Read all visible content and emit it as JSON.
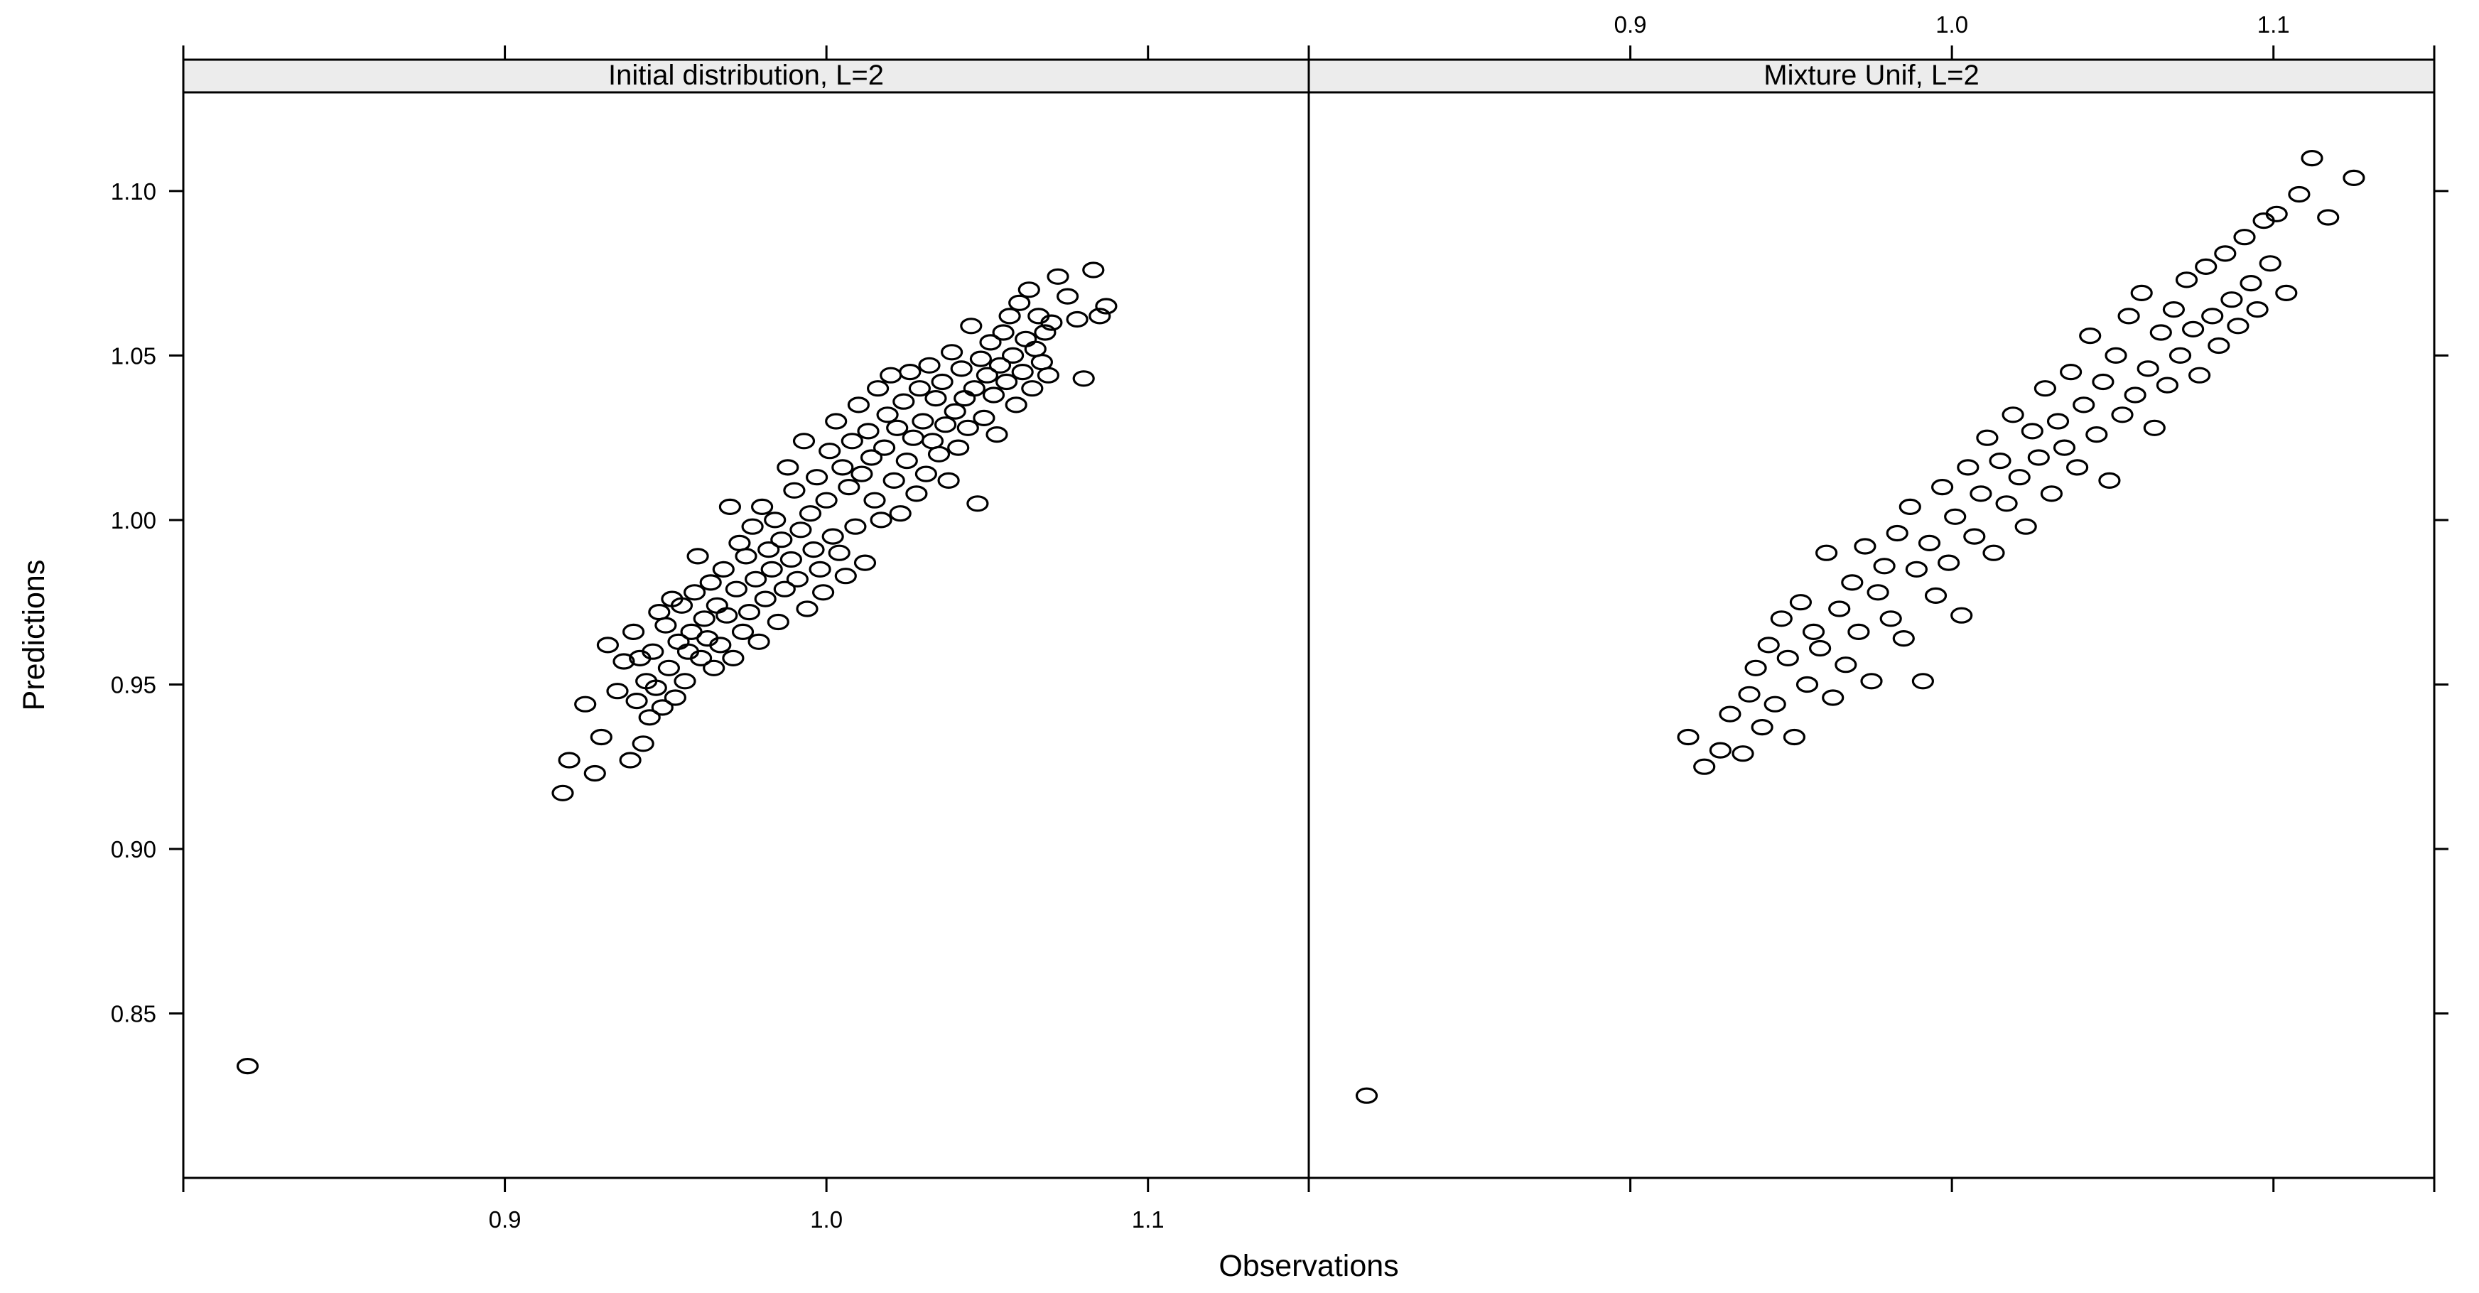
{
  "chart_data": {
    "type": "scatter",
    "xlabel": "Observations",
    "ylabel": "Predictions",
    "xlim": [
      0.8,
      1.15
    ],
    "ylim": [
      0.8,
      1.13
    ],
    "x_ticks": [
      0.9,
      1.0,
      1.1
    ],
    "x_tick_labels": [
      "0.9",
      "1.0",
      "1.1"
    ],
    "y_ticks": [
      0.85,
      0.9,
      0.95,
      1.0,
      1.05,
      1.1
    ],
    "y_tick_labels": [
      "0.85",
      "0.90",
      "0.95",
      "1.00",
      "1.05",
      "1.10"
    ],
    "grid": false,
    "marker": "open-circle",
    "panels": [
      {
        "title": "Initial distribution, L=2",
        "points": {
          "x": [
            0.82,
            0.918,
            0.92,
            0.925,
            0.928,
            0.93,
            0.932,
            0.935,
            0.937,
            0.939,
            0.94,
            0.941,
            0.942,
            0.943,
            0.944,
            0.945,
            0.946,
            0.947,
            0.948,
            0.949,
            0.95,
            0.951,
            0.952,
            0.953,
            0.954,
            0.955,
            0.956,
            0.957,
            0.958,
            0.959,
            0.96,
            0.961,
            0.962,
            0.963,
            0.964,
            0.965,
            0.966,
            0.967,
            0.968,
            0.969,
            0.97,
            0.971,
            0.972,
            0.973,
            0.974,
            0.975,
            0.976,
            0.977,
            0.978,
            0.979,
            0.98,
            0.981,
            0.982,
            0.983,
            0.984,
            0.985,
            0.986,
            0.987,
            0.988,
            0.989,
            0.99,
            0.991,
            0.992,
            0.993,
            0.994,
            0.995,
            0.996,
            0.997,
            0.998,
            0.999,
            1.0,
            1.001,
            1.002,
            1.003,
            1.004,
            1.005,
            1.006,
            1.007,
            1.008,
            1.009,
            1.01,
            1.011,
            1.012,
            1.013,
            1.014,
            1.015,
            1.016,
            1.017,
            1.018,
            1.019,
            1.02,
            1.021,
            1.022,
            1.023,
            1.024,
            1.025,
            1.026,
            1.027,
            1.028,
            1.029,
            1.03,
            1.031,
            1.032,
            1.033,
            1.034,
            1.035,
            1.036,
            1.037,
            1.038,
            1.039,
            1.04,
            1.041,
            1.042,
            1.043,
            1.044,
            1.045,
            1.046,
            1.047,
            1.048,
            1.049,
            1.05,
            1.051,
            1.052,
            1.053,
            1.054,
            1.055,
            1.056,
            1.057,
            1.058,
            1.059,
            1.06,
            1.061,
            1.062,
            1.063,
            1.064,
            1.065,
            1.066,
            1.067,
            1.068,
            1.069,
            1.07,
            1.072,
            1.075,
            1.078,
            1.08,
            1.083,
            1.085,
            1.087
          ],
          "y": [
            0.834,
            0.917,
            0.927,
            0.944,
            0.923,
            0.934,
            0.962,
            0.948,
            0.957,
            0.927,
            0.966,
            0.945,
            0.958,
            0.932,
            0.951,
            0.94,
            0.96,
            0.949,
            0.972,
            0.943,
            0.968,
            0.955,
            0.976,
            0.946,
            0.963,
            0.974,
            0.951,
            0.96,
            0.966,
            0.978,
            0.989,
            0.958,
            0.97,
            0.964,
            0.981,
            0.955,
            0.974,
            0.962,
            0.985,
            0.971,
            1.004,
            0.958,
            0.979,
            0.993,
            0.966,
            0.989,
            0.972,
            0.998,
            0.982,
            0.963,
            1.004,
            0.976,
            0.991,
            0.985,
            1.0,
            0.969,
            0.994,
            0.979,
            1.016,
            0.988,
            1.009,
            0.982,
            0.997,
            1.024,
            0.973,
            1.002,
            0.991,
            1.013,
            0.985,
            0.978,
            1.006,
            1.021,
            0.995,
            1.03,
            0.99,
            1.016,
            0.983,
            1.01,
            1.024,
            0.998,
            1.035,
            1.014,
            0.987,
            1.027,
            1.019,
            1.006,
            1.04,
            1.0,
            1.022,
            1.032,
            1.044,
            1.012,
            1.028,
            1.002,
            1.036,
            1.018,
            1.045,
            1.025,
            1.008,
            1.04,
            1.03,
            1.014,
            1.047,
            1.024,
            1.037,
            1.02,
            1.042,
            1.029,
            1.012,
            1.051,
            1.033,
            1.022,
            1.046,
            1.037,
            1.028,
            1.059,
            1.04,
            1.005,
            1.049,
            1.031,
            1.044,
            1.054,
            1.038,
            1.026,
            1.047,
            1.057,
            1.042,
            1.062,
            1.05,
            1.035,
            1.066,
            1.045,
            1.055,
            1.07,
            1.04,
            1.052,
            1.062,
            1.048,
            1.057,
            1.044,
            1.06,
            1.074,
            1.068,
            1.061,
            1.043,
            1.076,
            1.062,
            1.065
          ]
        }
      },
      {
        "title": "Mixture Unif, L=2",
        "points": {
          "x": [
            0.818,
            0.918,
            0.923,
            0.928,
            0.931,
            0.935,
            0.937,
            0.939,
            0.941,
            0.943,
            0.945,
            0.947,
            0.949,
            0.951,
            0.953,
            0.955,
            0.957,
            0.959,
            0.961,
            0.963,
            0.965,
            0.967,
            0.969,
            0.971,
            0.973,
            0.975,
            0.977,
            0.979,
            0.981,
            0.983,
            0.985,
            0.987,
            0.989,
            0.991,
            0.993,
            0.995,
            0.997,
            0.999,
            1.001,
            1.003,
            1.005,
            1.007,
            1.009,
            1.011,
            1.013,
            1.015,
            1.017,
            1.019,
            1.021,
            1.023,
            1.025,
            1.027,
            1.029,
            1.031,
            1.033,
            1.035,
            1.037,
            1.039,
            1.041,
            1.043,
            1.045,
            1.047,
            1.049,
            1.051,
            1.053,
            1.055,
            1.057,
            1.059,
            1.061,
            1.063,
            1.065,
            1.067,
            1.069,
            1.071,
            1.073,
            1.075,
            1.077,
            1.079,
            1.081,
            1.083,
            1.085,
            1.087,
            1.089,
            1.091,
            1.093,
            1.095,
            1.097,
            1.099,
            1.101,
            1.104,
            1.108,
            1.112,
            1.117,
            1.125
          ],
          "y": [
            0.825,
            0.934,
            0.925,
            0.93,
            0.941,
            0.929,
            0.947,
            0.955,
            0.937,
            0.962,
            0.944,
            0.97,
            0.958,
            0.934,
            0.975,
            0.95,
            0.966,
            0.961,
            0.99,
            0.946,
            0.973,
            0.956,
            0.981,
            0.966,
            0.992,
            0.951,
            0.978,
            0.986,
            0.97,
            0.996,
            0.964,
            1.004,
            0.985,
            0.951,
            0.993,
            0.977,
            1.01,
            0.987,
            1.001,
            0.971,
            1.016,
            0.995,
            1.008,
            1.025,
            0.99,
            1.018,
            1.005,
            1.032,
            1.013,
            0.998,
            1.027,
            1.019,
            1.04,
            1.008,
            1.03,
            1.022,
            1.045,
            1.016,
            1.035,
            1.056,
            1.026,
            1.042,
            1.012,
            1.05,
            1.032,
            1.062,
            1.038,
            1.069,
            1.046,
            1.028,
            1.057,
            1.041,
            1.064,
            1.05,
            1.073,
            1.058,
            1.044,
            1.077,
            1.062,
            1.053,
            1.081,
            1.067,
            1.059,
            1.086,
            1.072,
            1.064,
            1.091,
            1.078,
            1.093,
            1.069,
            1.099,
            1.11,
            1.092,
            1.104
          ]
        }
      }
    ]
  }
}
